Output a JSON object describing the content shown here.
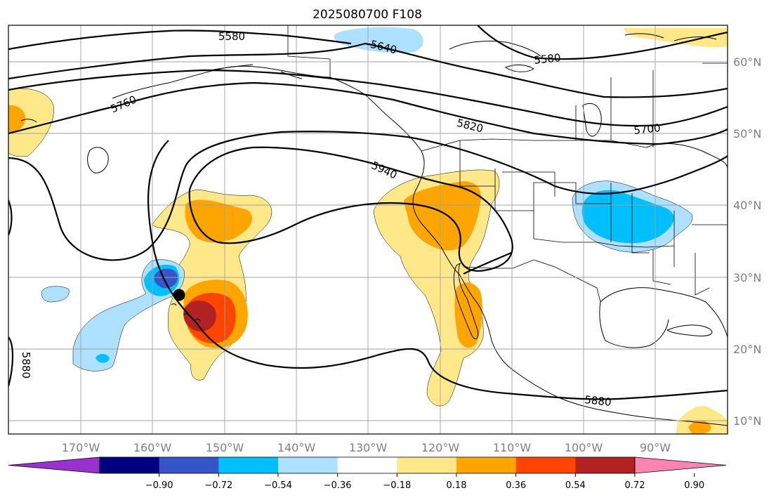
{
  "title": "2025080700 F108",
  "map": {
    "lon_ticks": [
      "170°W",
      "160°W",
      "150°W",
      "140°W",
      "130°W",
      "120°W",
      "110°W",
      "100°W",
      "90°W"
    ],
    "lat_ticks": [
      "60°N",
      "50°N",
      "40°N",
      "30°N",
      "20°N",
      "10°N"
    ],
    "grid": true,
    "storm_marker": "filled-black-dot"
  },
  "contours": {
    "labels": [
      "5580",
      "5640",
      "5580",
      "5760",
      "5820",
      "5700",
      "5940",
      "5880",
      "5880"
    ]
  },
  "colorbar": {
    "tick_labels": [
      "−0.90",
      "−0.72",
      "−0.54",
      "−0.36",
      "−0.18",
      "0.18",
      "0.36",
      "0.54",
      "0.72",
      "0.90"
    ],
    "colors": [
      "#9932cc",
      "#000080",
      "#3655c8",
      "#00bfff",
      "#aee0ff",
      "#ffffff",
      "#ffe88a",
      "#ffa500",
      "#ff4500",
      "#b22222",
      "#ff85b0"
    ],
    "extend": "both"
  }
}
